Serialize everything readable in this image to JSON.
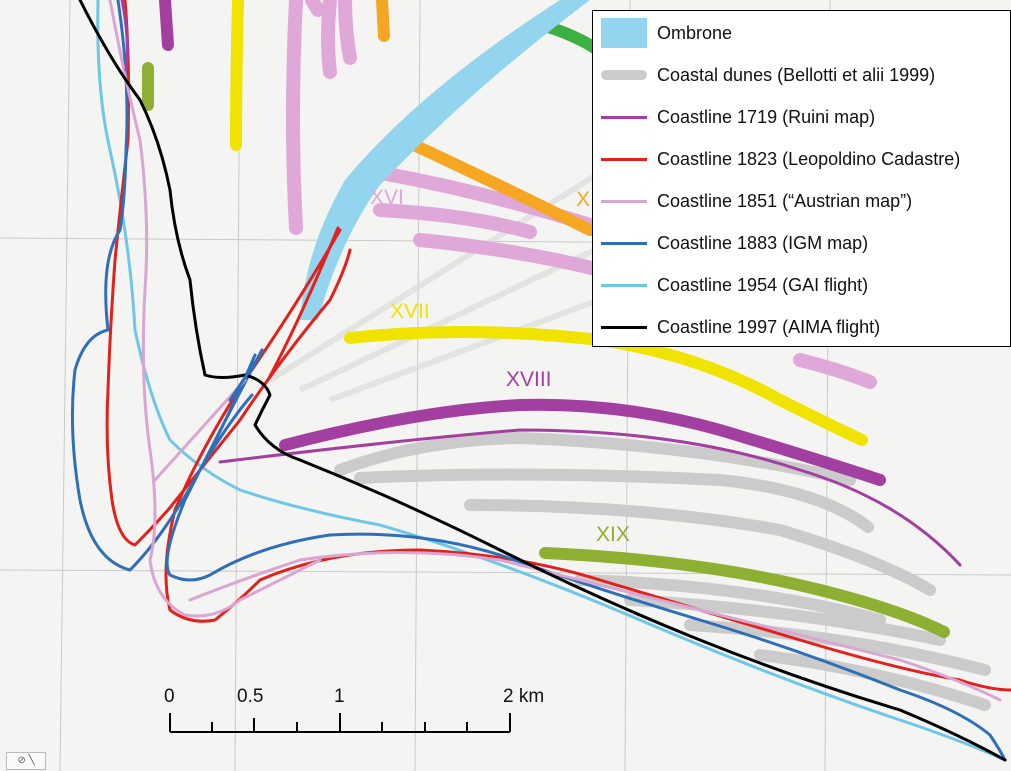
{
  "legend": {
    "items": [
      {
        "label": "Ombrone",
        "color": "#93d5ee",
        "style": "box"
      },
      {
        "label": "Coastal dunes  (Bellotti et alii 1999)",
        "color": "#cbcbcb",
        "style": "thick"
      },
      {
        "label": "Coastline 1719 (Ruini map)",
        "color": "#a23fa0",
        "style": "line"
      },
      {
        "label": "Coastline 1823 (Leopoldino Cadastre)",
        "color": "#e2211c",
        "style": "line"
      },
      {
        "label": "Coastline 1851 (“Austrian map”)",
        "color": "#d9a6d3",
        "style": "line"
      },
      {
        "label": "Coastline 1883 (IGM map)",
        "color": "#2f6fb8",
        "style": "line"
      },
      {
        "label": "Coastline 1954 (GAI flight)",
        "color": "#6ec7e6",
        "style": "line"
      },
      {
        "label": "Coastline 1997 (AIMA flight)",
        "color": "#000000",
        "style": "line"
      }
    ]
  },
  "era_labels": [
    {
      "text": "XVI",
      "color": "#dfa8d8"
    },
    {
      "text": "X",
      "color": "#f5a623"
    },
    {
      "text": "XVII",
      "color": "#f0e300"
    },
    {
      "text": "XVIII",
      "color": "#a23fa0"
    },
    {
      "text": "XIX",
      "color": "#8db033"
    }
  ],
  "scale_bar": {
    "ticks": [
      "0",
      "0.5",
      "1",
      "2 km"
    ]
  },
  "colors": {
    "dune_gray": "#cbcbcb",
    "yellow": "#f0e300",
    "orange": "#f5a623",
    "green_dune": "#8db033",
    "bright_green": "#3cb043",
    "purple": "#a23fa0",
    "pink": "#d9a6d3",
    "red": "#e2211c",
    "blue": "#2f6fb8",
    "light_blue": "#6ec7e6",
    "river": "#93d5ee"
  }
}
